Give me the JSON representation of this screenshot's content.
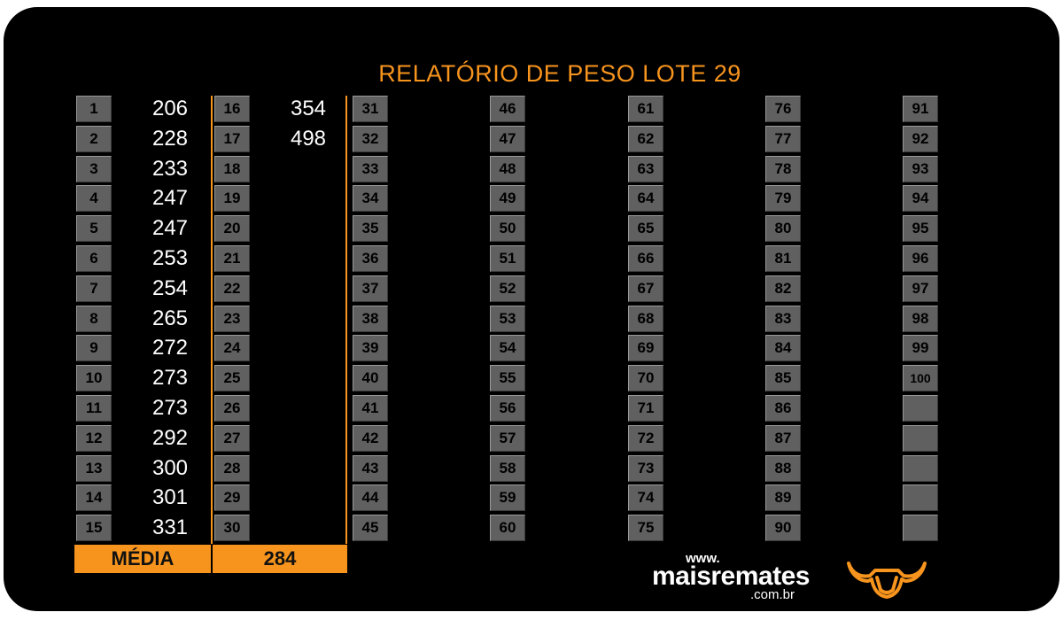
{
  "report": {
    "title": "RELATÓRIO DE PESO LOTE 29",
    "weights": [
      "206",
      "228",
      "233",
      "247",
      "247",
      "253",
      "254",
      "265",
      "272",
      "273",
      "273",
      "292",
      "300",
      "301",
      "331",
      "354",
      "498"
    ],
    "average_label": "MÉDIA",
    "average_value": "284",
    "total_slots": 100,
    "extra_empty_slots": 5
  },
  "branding": {
    "www": "www.",
    "name": "maisremates",
    "domain": ".com.br",
    "logo_icon": "bull-head-icon"
  },
  "colors": {
    "accent": "#f7941d",
    "cell": "#606060",
    "background": "#000000",
    "text": "#ffffff"
  }
}
